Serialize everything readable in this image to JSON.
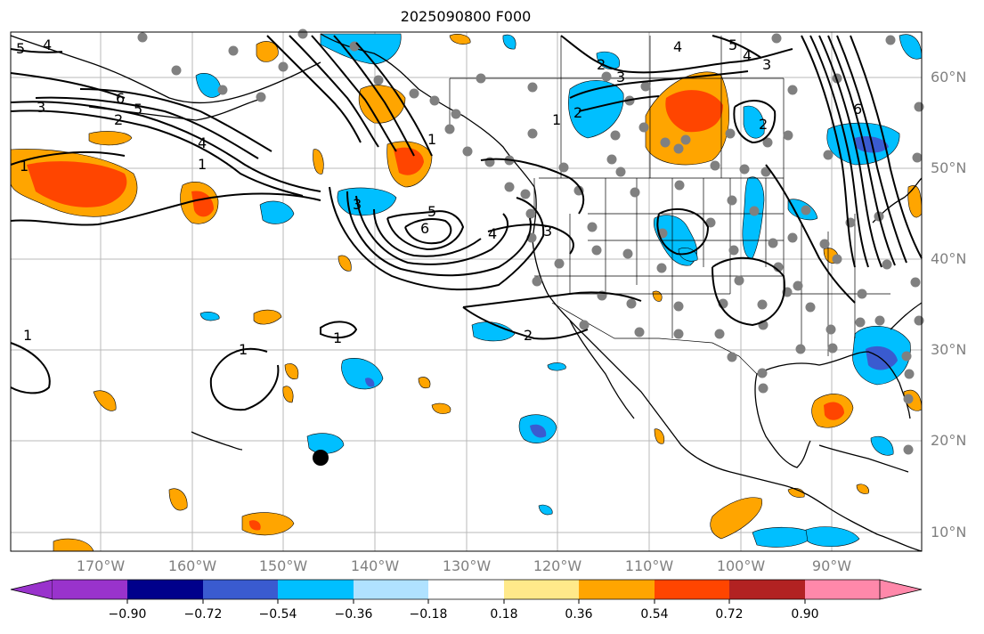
{
  "title": "2025090800 F000",
  "lat_labels": [
    "60°N",
    "50°N",
    "40°N",
    "30°N",
    "20°N",
    "10°N"
  ],
  "lon_labels": [
    "170°W",
    "160°W",
    "150°W",
    "140°W",
    "130°W",
    "120°W",
    "110°W",
    "100°W",
    "90°W"
  ],
  "contour_labels": [
    "6",
    "5",
    "4",
    "3",
    "2",
    "1",
    "1",
    "1",
    "1",
    "1",
    "1",
    "2",
    "3",
    "4",
    "5",
    "6",
    "2",
    "3",
    "4",
    "5",
    "4",
    "3",
    "2",
    "6",
    "5",
    "4",
    "3",
    "2",
    "1"
  ],
  "colorbar": {
    "tick_labels": [
      "−0.90",
      "−0.72",
      "−0.54",
      "−0.36",
      "−0.18",
      "0.18",
      "0.36",
      "0.54",
      "0.72",
      "0.90"
    ],
    "colors": [
      "#9933cc",
      "#00008b",
      "#3a5bd0",
      "#00bfff",
      "#b0e2ff",
      "#ffffff",
      "#ffe98a",
      "#ffa500",
      "#ff4500",
      "#b22222",
      "#ff88aa"
    ]
  },
  "colors": {
    "coast": "#000000",
    "grid": "#b0b0b0",
    "station": "#808080"
  },
  "chart_data": {
    "type": "map",
    "title": "2025090800 F000",
    "lon_range": [
      -180,
      -80
    ],
    "lat_range": [
      8,
      65
    ],
    "fill_field_levels": [
      -0.9,
      -0.72,
      -0.54,
      -0.36,
      -0.18,
      0.18,
      0.36,
      0.54,
      0.72,
      0.9
    ],
    "contour_levels": [
      1,
      2,
      3,
      4,
      5,
      6
    ],
    "storm_marker": {
      "lon": -145.8,
      "lat": 18.2
    }
  }
}
